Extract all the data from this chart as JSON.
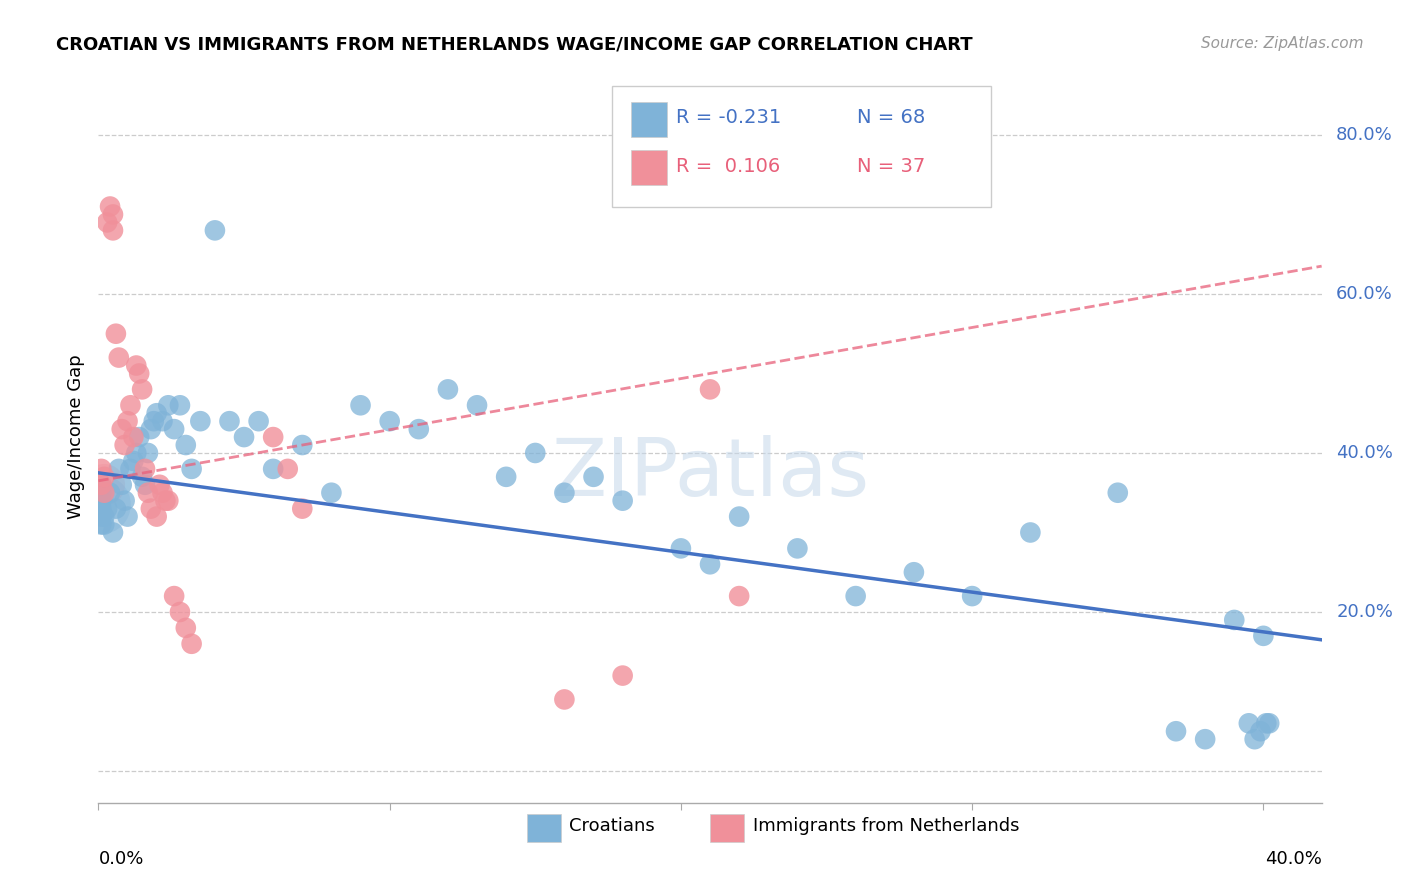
{
  "title": "CROATIAN VS IMMIGRANTS FROM NETHERLANDS WAGE/INCOME GAP CORRELATION CHART",
  "source": "Source: ZipAtlas.com",
  "ylabel": "Wage/Income Gap",
  "ytick_positions": [
    0.0,
    0.2,
    0.4,
    0.6,
    0.8
  ],
  "ytick_labels": [
    "",
    "20.0%",
    "40.0%",
    "60.0%",
    "80.0%"
  ],
  "xlim": [
    0.0,
    0.42
  ],
  "ylim": [
    -0.04,
    0.88
  ],
  "blue_color": "#7fb3d8",
  "pink_color": "#f0909a",
  "trendline_blue": "#4472c4",
  "trendline_pink": "#e8607a",
  "blue_trend_y0": 0.375,
  "blue_trend_y1": 0.165,
  "pink_trend_y0": 0.365,
  "pink_trend_y1": 0.635,
  "legend_R_blue": "R = -0.231",
  "legend_N_blue": "N = 68",
  "legend_R_pink": "R =  0.106",
  "legend_N_pink": "N = 37",
  "croatians_x": [
    0.001,
    0.001,
    0.001,
    0.001,
    0.001,
    0.001,
    0.002,
    0.002,
    0.003,
    0.004,
    0.005,
    0.006,
    0.007,
    0.008,
    0.009,
    0.01,
    0.011,
    0.012,
    0.013,
    0.014,
    0.015,
    0.016,
    0.017,
    0.018,
    0.019,
    0.02,
    0.022,
    0.024,
    0.026,
    0.028,
    0.03,
    0.032,
    0.035,
    0.04,
    0.045,
    0.05,
    0.055,
    0.06,
    0.07,
    0.08,
    0.09,
    0.1,
    0.11,
    0.12,
    0.13,
    0.14,
    0.15,
    0.16,
    0.17,
    0.18,
    0.2,
    0.21,
    0.22,
    0.24,
    0.26,
    0.28,
    0.3,
    0.32,
    0.35,
    0.37,
    0.38,
    0.39,
    0.395,
    0.397,
    0.399,
    0.4,
    0.401,
    0.402
  ],
  "croatians_y": [
    0.34,
    0.33,
    0.32,
    0.31,
    0.35,
    0.36,
    0.32,
    0.31,
    0.33,
    0.35,
    0.3,
    0.33,
    0.38,
    0.36,
    0.34,
    0.32,
    0.38,
    0.39,
    0.4,
    0.42,
    0.37,
    0.36,
    0.4,
    0.43,
    0.44,
    0.45,
    0.44,
    0.46,
    0.43,
    0.46,
    0.41,
    0.38,
    0.44,
    0.68,
    0.44,
    0.42,
    0.44,
    0.38,
    0.41,
    0.35,
    0.46,
    0.44,
    0.43,
    0.48,
    0.46,
    0.37,
    0.4,
    0.35,
    0.37,
    0.34,
    0.28,
    0.26,
    0.32,
    0.28,
    0.22,
    0.25,
    0.22,
    0.3,
    0.35,
    0.05,
    0.04,
    0.19,
    0.06,
    0.04,
    0.05,
    0.17,
    0.06,
    0.06
  ],
  "netherlands_x": [
    0.001,
    0.001,
    0.002,
    0.002,
    0.003,
    0.004,
    0.005,
    0.005,
    0.006,
    0.007,
    0.008,
    0.009,
    0.01,
    0.011,
    0.012,
    0.013,
    0.014,
    0.015,
    0.016,
    0.017,
    0.018,
    0.02,
    0.021,
    0.022,
    0.023,
    0.024,
    0.026,
    0.028,
    0.03,
    0.032,
    0.06,
    0.065,
    0.07,
    0.16,
    0.18,
    0.21,
    0.22
  ],
  "netherlands_y": [
    0.36,
    0.38,
    0.35,
    0.37,
    0.69,
    0.71,
    0.7,
    0.68,
    0.55,
    0.52,
    0.43,
    0.41,
    0.44,
    0.46,
    0.42,
    0.51,
    0.5,
    0.48,
    0.38,
    0.35,
    0.33,
    0.32,
    0.36,
    0.35,
    0.34,
    0.34,
    0.22,
    0.2,
    0.18,
    0.16,
    0.42,
    0.38,
    0.33,
    0.09,
    0.12,
    0.48,
    0.22
  ]
}
